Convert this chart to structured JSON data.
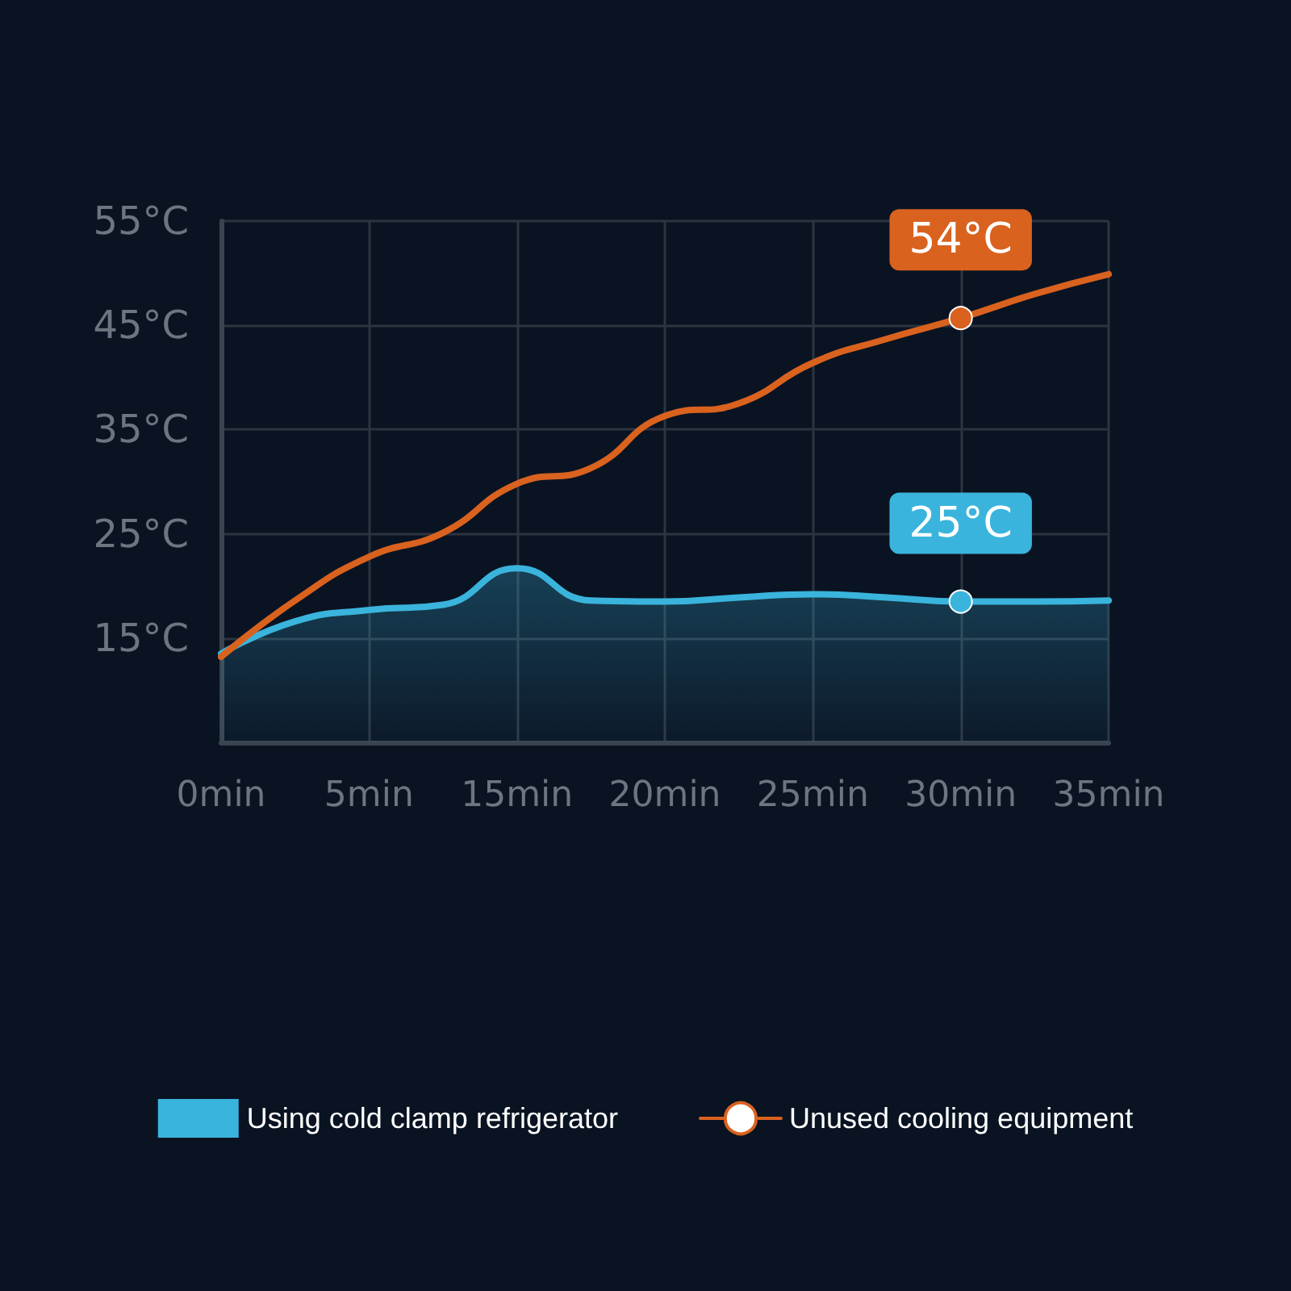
{
  "chart_data": {
    "type": "line",
    "categories": [
      "0min",
      null,
      "5min",
      null,
      "15min",
      null,
      "20min",
      null,
      "25min",
      null,
      "30min",
      null,
      "35min"
    ],
    "series": [
      {
        "name": "Using cold clamp refrigerator",
        "type": "area",
        "color": "#3ab4dc",
        "values": [
          13.5,
          16.6,
          17.7,
          18.2,
          21.7,
          18.6,
          18.5,
          18.9,
          19.2,
          18.9,
          18.5,
          18.5,
          18.6
        ]
      },
      {
        "name": "Unused cooling equipment",
        "color": "#d9621f",
        "values": [
          13.2,
          18.6,
          22.8,
          25.1,
          29.8,
          31.3,
          36.3,
          37.5,
          41.4,
          43.7,
          45.7,
          48.0,
          49.9
        ]
      }
    ],
    "ylim": [
      5,
      55
    ],
    "yticks": [
      {
        "value": 15,
        "label": "15°C"
      },
      {
        "value": 25,
        "label": "25°C"
      },
      {
        "value": 35,
        "label": "35°C"
      },
      {
        "value": 45,
        "label": "45°C"
      },
      {
        "value": 55,
        "label": "55°C"
      }
    ],
    "annotations": [
      {
        "text": "54°C",
        "x": "30min",
        "y": 45.7
      },
      {
        "text": "25°C",
        "x": "30min",
        "y": 18.5
      }
    ],
    "grid": true,
    "legend": "bottom",
    "line_style": "solid"
  }
}
